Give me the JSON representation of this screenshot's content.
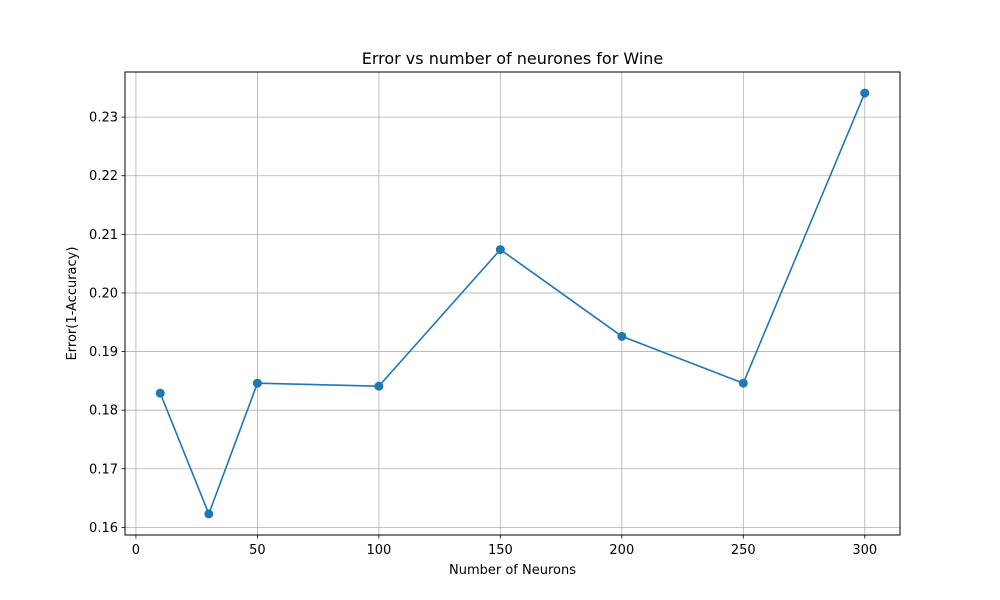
{
  "chart_data": {
    "type": "line",
    "title": "Error vs number of neurones for Wine",
    "xlabel": "Number of Neurons",
    "ylabel": "Error(1-Accuracy)",
    "x": [
      10,
      30,
      50,
      100,
      150,
      200,
      250,
      300
    ],
    "series": [
      {
        "values": [
          0.1829,
          0.1623,
          0.1846,
          0.1841,
          0.2074,
          0.1926,
          0.1846,
          0.2341
        ]
      }
    ],
    "xlim": [
      -4.5,
      314.5
    ],
    "ylim": [
      0.1587,
      0.2377
    ],
    "xticks": [
      0,
      50,
      100,
      150,
      200,
      250,
      300
    ],
    "yticks": [
      0.16,
      0.17,
      0.18,
      0.19,
      0.2,
      0.21,
      0.22,
      0.23
    ],
    "ytick_labels": [
      "0.16",
      "0.17",
      "0.18",
      "0.19",
      "0.20",
      "0.21",
      "0.22",
      "0.23"
    ],
    "grid": true,
    "line_color": "#1f77b4",
    "grid_color": "#b0b0b0"
  }
}
